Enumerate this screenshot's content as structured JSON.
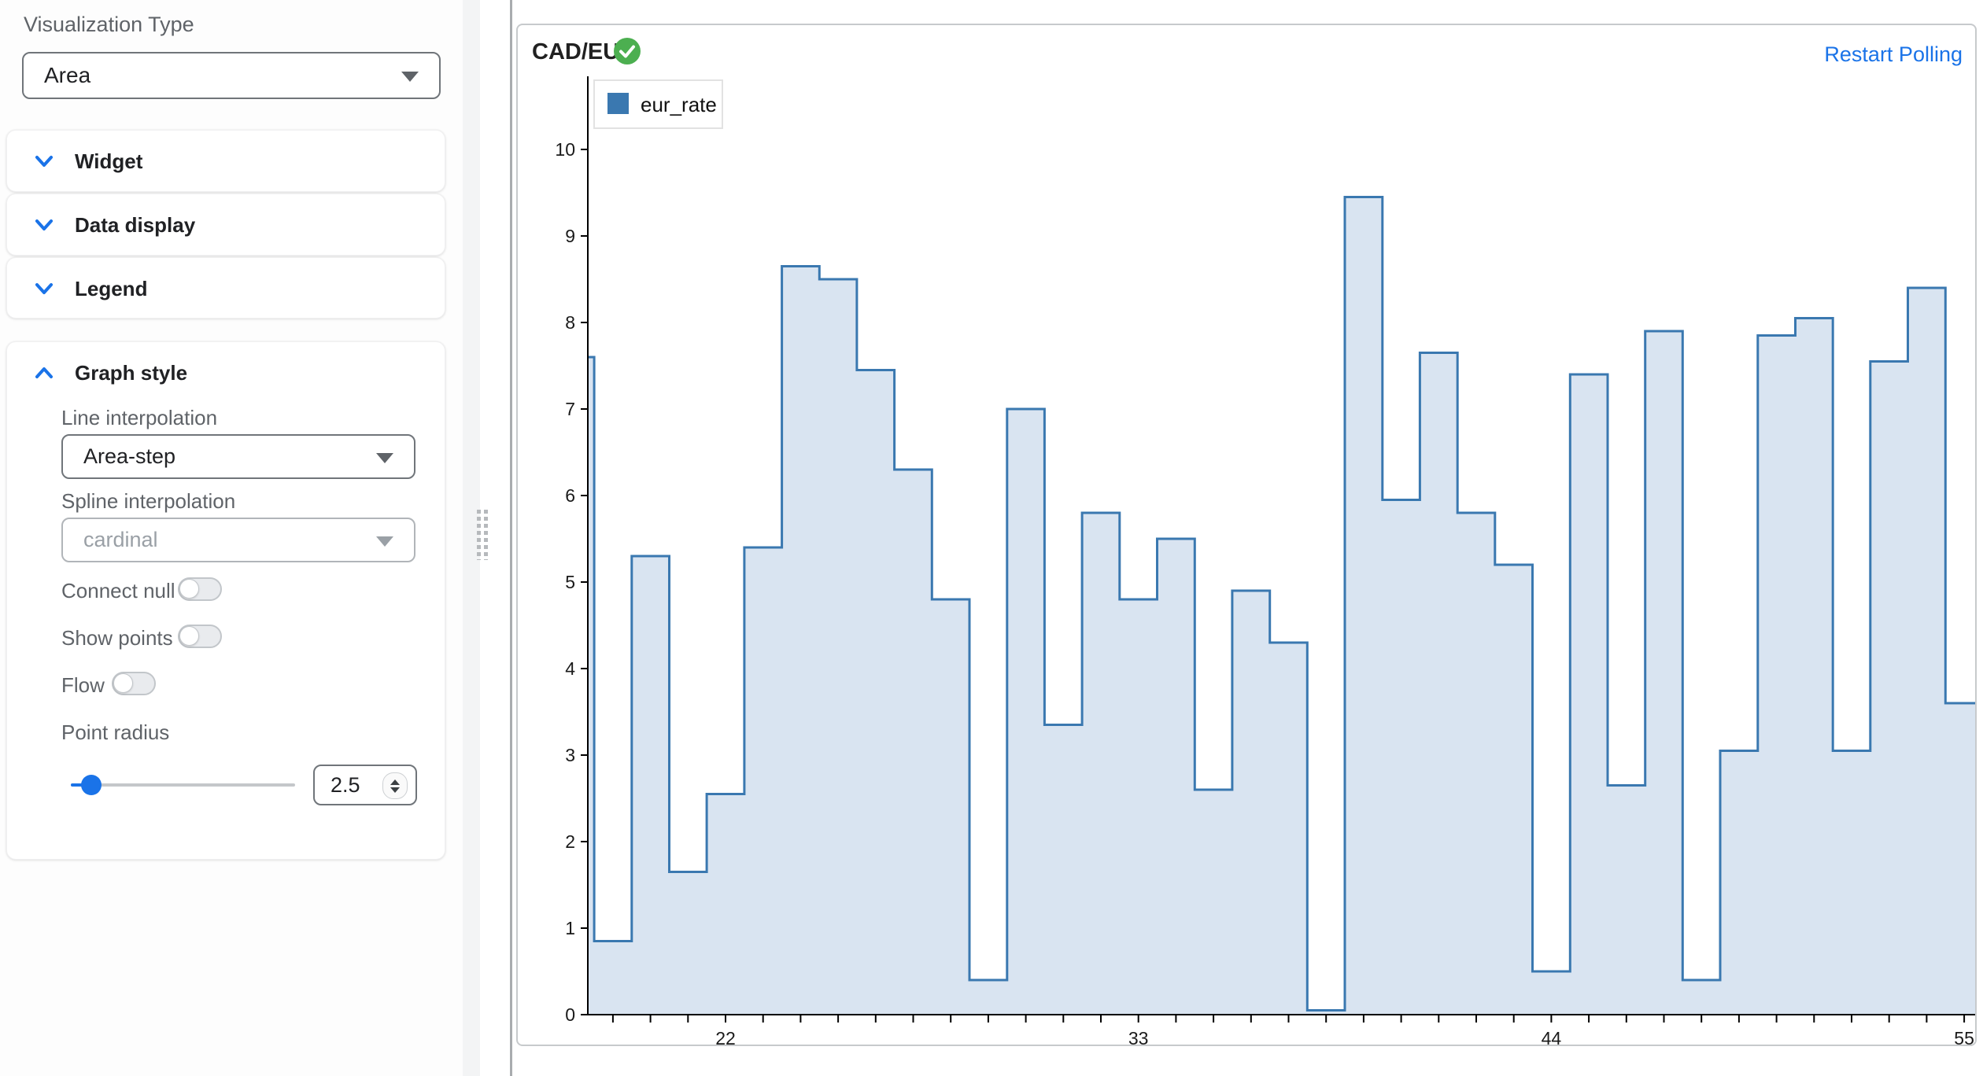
{
  "sidebar": {
    "viz_type_label": "Visualization Type",
    "viz_type_value": "Area",
    "sections": [
      {
        "label": "Widget"
      },
      {
        "label": "Data display"
      },
      {
        "label": "Legend"
      }
    ],
    "graph_style": {
      "label": "Graph style",
      "line_interp_label": "Line interpolation",
      "line_interp_value": "Area-step",
      "spline_interp_label": "Spline interpolation",
      "spline_interp_value": "cardinal",
      "toggles": [
        {
          "label": "Connect null",
          "state": "off"
        },
        {
          "label": "Show points",
          "state": "off"
        },
        {
          "label": "Flow",
          "state": "off"
        }
      ],
      "point_radius_label": "Point radius",
      "point_radius_value": "2.5"
    }
  },
  "chart_panel": {
    "title": "CAD/EUR",
    "status_icon": "green-check",
    "restart_label": "Restart Polling"
  },
  "chart_data": {
    "type": "area",
    "subtype": "area-step",
    "title": "CAD/EUR",
    "legend_entries": [
      "eur_rate"
    ],
    "legend_position": "inset-top-left",
    "grid": false,
    "xlim": [
      18,
      55
    ],
    "ylim": [
      0,
      10
    ],
    "x_ticks": [
      22,
      33,
      44,
      55
    ],
    "y_ticks": [
      0,
      1,
      2,
      3,
      4,
      5,
      6,
      7,
      8,
      9,
      10
    ],
    "series": [
      {
        "name": "eur_rate",
        "x": [
          18,
          19,
          20,
          21,
          22,
          23,
          24,
          25,
          26,
          27,
          28,
          29,
          30,
          31,
          32,
          33,
          34,
          35,
          36,
          37,
          38,
          39,
          40,
          41,
          42,
          43,
          44,
          45,
          46,
          47,
          48,
          49,
          50,
          51,
          52,
          53,
          54,
          55
        ],
        "values": [
          7.6,
          0.85,
          5.3,
          1.65,
          2.55,
          5.4,
          8.65,
          8.5,
          7.45,
          6.3,
          4.8,
          0.4,
          7.0,
          3.35,
          5.8,
          4.8,
          5.5,
          2.6,
          4.9,
          4.3,
          0.05,
          9.45,
          5.95,
          7.65,
          5.8,
          5.2,
          0.5,
          7.4,
          2.65,
          7.9,
          0.4,
          3.05,
          7.85,
          8.05,
          3.05,
          7.55,
          8.4,
          3.6
        ]
      }
    ]
  },
  "colors": {
    "accent_blue": "#1a73e8",
    "line": "#3a78b0",
    "area_fill": "#d9e4f1",
    "status_green": "#4caf50",
    "axis": "#000000",
    "text_dark": "#202124",
    "text_gray": "#5f6368",
    "text_disabled": "#9aa0a6"
  }
}
